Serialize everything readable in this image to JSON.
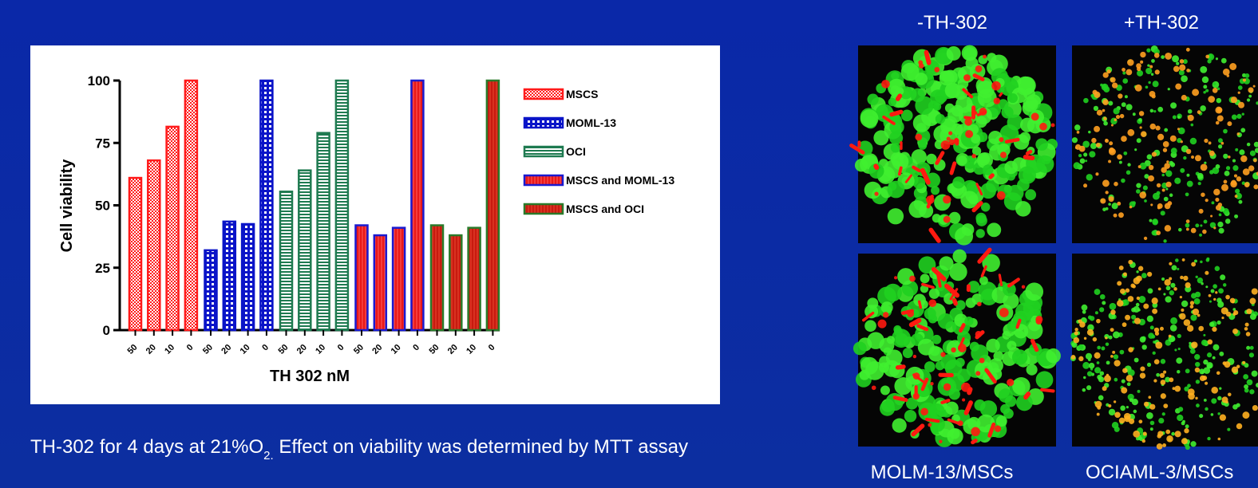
{
  "chart_data": {
    "type": "bar",
    "ylabel": "Cell viability",
    "xlabel": "TH 302 nM",
    "categories": [
      "50",
      "20",
      "10",
      "0"
    ],
    "series": [
      {
        "name": "MSCS",
        "color": "#ff1a1a",
        "values": [
          61,
          68,
          81.5,
          100
        ]
      },
      {
        "name": "MOML-13",
        "color": "#0a14c8",
        "values": [
          32,
          43.5,
          42.5,
          100
        ]
      },
      {
        "name": "OCI",
        "color": "#1e7a50",
        "values": [
          55.5,
          64,
          79,
          100
        ]
      },
      {
        "name": "MSCS and MOML-13",
        "color": "#1a1ad0",
        "values": [
          42,
          38,
          41,
          100
        ]
      },
      {
        "name": "MSCS and OCI",
        "color": "#2a7a2a",
        "values": [
          42,
          38,
          41,
          100
        ]
      }
    ],
    "ylim": [
      0,
      100
    ],
    "yticks": [
      0,
      25,
      50,
      75,
      100
    ]
  },
  "caption": {
    "text": "TH-302 for 4 days at 21%O",
    "subscript": "2.",
    "rest": " Effect on viability was determined by MTT assay"
  },
  "images": {
    "col_labels": [
      "-TH-302",
      "+TH-302"
    ],
    "row_labels": [
      "MOLM-13/MSCs",
      "OCIAML-3/MSCs"
    ]
  }
}
